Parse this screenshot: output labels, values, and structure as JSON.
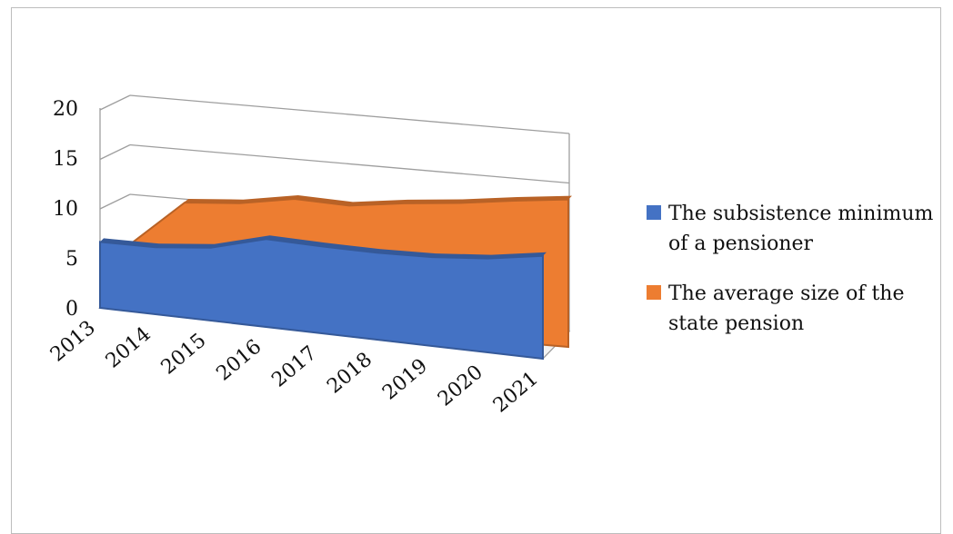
{
  "chart_data": {
    "type": "area",
    "title": "",
    "xlabel": "",
    "ylabel": "",
    "ylim": [
      0,
      20
    ],
    "yticks": [
      0,
      5,
      10,
      15,
      20
    ],
    "categories": [
      "2013",
      "2014",
      "2015",
      "2016",
      "2017",
      "2018",
      "2019",
      "2020",
      "2021"
    ],
    "series": [
      {
        "name": "The subsistence minimum of a pensioner",
        "color": "#4472c4",
        "values": [
          6.6,
          6.7,
          7.3,
          8.8,
          8.7,
          8.7,
          8.9,
          9.4,
          10.3
        ]
      },
      {
        "name": "The average size of the state pension",
        "color": "#ed7d31",
        "values": [
          6.6,
          11.3,
          11.7,
          12.6,
          12.4,
          13.1,
          13.6,
          14.3,
          14.9
        ]
      }
    ],
    "grid": true,
    "legend_position": "right",
    "view": "3d-perspective"
  }
}
